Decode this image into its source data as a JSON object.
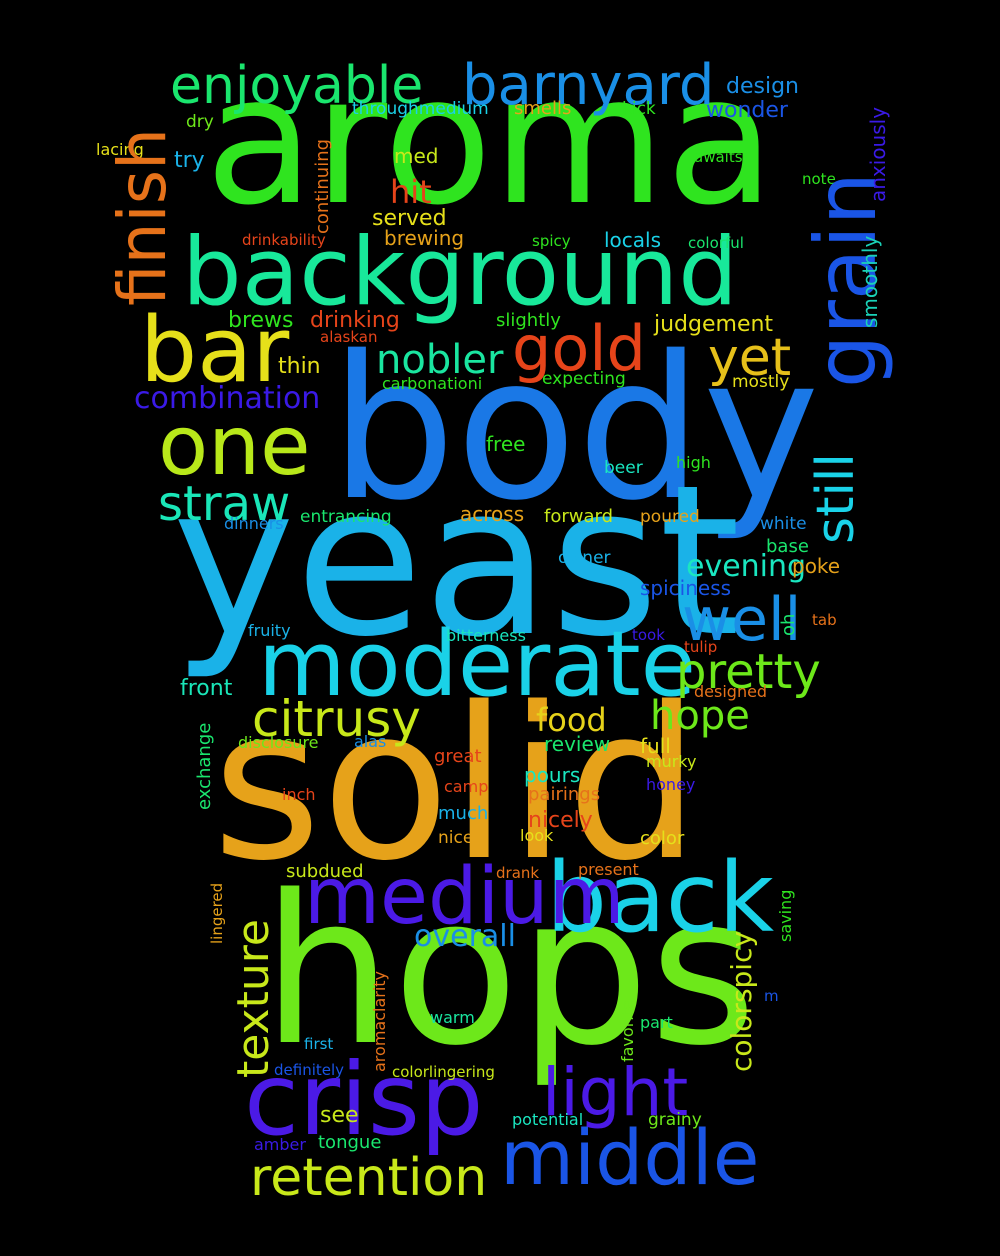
{
  "words": [
    {
      "text": "aroma",
      "color": "#2fe41f"
    },
    {
      "text": "body",
      "color": "#1a78e6"
    },
    {
      "text": "yeast",
      "color": "#1ab2e8"
    },
    {
      "text": "solid",
      "color": "#e6a21a"
    },
    {
      "text": "hops",
      "color": "#6de81a"
    },
    {
      "text": "background",
      "color": "#18e89a"
    },
    {
      "text": "moderate",
      "color": "#1ad2e8"
    },
    {
      "text": "back",
      "color": "#1ad2e8"
    },
    {
      "text": "crisp",
      "color": "#4b1ae6"
    },
    {
      "text": "middle",
      "color": "#1a55e6"
    },
    {
      "text": "medium",
      "color": "#1a55e6"
    },
    {
      "text": "grain",
      "color": "#4b1ae6"
    },
    {
      "text": "bar",
      "color": "#e6e01a"
    },
    {
      "text": "one",
      "color": "#b8e81a"
    },
    {
      "text": "barnyard",
      "color": "#1a8fe6"
    },
    {
      "text": "enjoyable",
      "color": "#1ae66e"
    },
    {
      "text": "finish",
      "color": "#e6721a"
    },
    {
      "text": "still",
      "color": "#1ad2e8"
    },
    {
      "text": "well",
      "color": "#1a8fe6"
    },
    {
      "text": "gold",
      "color": "#e6441a"
    },
    {
      "text": "yet",
      "color": "#e6c01a"
    },
    {
      "text": "light",
      "color": "#4b1ae6"
    },
    {
      "text": "retention",
      "color": "#c8e81a"
    },
    {
      "text": "straw",
      "color": "#1ae6b8"
    },
    {
      "text": "citrusy",
      "color": "#c8e81a"
    },
    {
      "text": "pretty",
      "color": "#6de81a"
    },
    {
      "text": "texture",
      "color": "#c8e81a"
    },
    {
      "text": "nobler",
      "color": "#1ae6a0"
    },
    {
      "text": "hope",
      "color": "#6de81a"
    },
    {
      "text": "combination",
      "color": "#3a1ae6"
    },
    {
      "text": "colorspicy",
      "color": "#c8e81a"
    },
    {
      "text": "overall",
      "color": "#1a8fe6"
    },
    {
      "text": "evening",
      "color": "#1ae6c0"
    },
    {
      "text": "food",
      "color": "#e6d21a"
    },
    {
      "text": "hit",
      "color": "#e6441a"
    },
    {
      "text": "judgement",
      "color": "#e6e01a"
    },
    {
      "text": "design",
      "color": "#1a8fe6"
    },
    {
      "text": "wonder",
      "color": "#1a55e6"
    },
    {
      "text": "smoothly",
      "color": "#1ad2b8"
    },
    {
      "text": "anxiously",
      "color": "#3a1ae6"
    },
    {
      "text": "throughmedium",
      "color": "#1ad2e8"
    },
    {
      "text": "smells",
      "color": "#e6a21a"
    },
    {
      "text": "kick",
      "color": "#2fe41f"
    },
    {
      "text": "dry",
      "color": "#6de81a"
    },
    {
      "text": "lacing",
      "color": "#e6e01a"
    },
    {
      "text": "try",
      "color": "#1ab2e8"
    },
    {
      "text": "med",
      "color": "#c8e81a"
    },
    {
      "text": "continuing",
      "color": "#e6721a"
    },
    {
      "text": "awaits",
      "color": "#2fe41f"
    },
    {
      "text": "note",
      "color": "#2fe41f"
    },
    {
      "text": "served",
      "color": "#e6e01a"
    },
    {
      "text": "brewing",
      "color": "#e6a21a"
    },
    {
      "text": "drinkability",
      "color": "#e6441a"
    },
    {
      "text": "spicy",
      "color": "#2fe41f"
    },
    {
      "text": "locals",
      "color": "#1ad2e8"
    },
    {
      "text": "colorful",
      "color": "#1ae66e"
    },
    {
      "text": "brews",
      "color": "#2fe41f"
    },
    {
      "text": "drinking",
      "color": "#e6441a"
    },
    {
      "text": "slightly",
      "color": "#2fe41f"
    },
    {
      "text": "alaskan",
      "color": "#e6441a"
    },
    {
      "text": "thin",
      "color": "#e6e01a"
    },
    {
      "text": "carbonationi",
      "color": "#2fe41f"
    },
    {
      "text": "expecting",
      "color": "#2fe41f"
    },
    {
      "text": "mostly",
      "color": "#e6e01a"
    },
    {
      "text": "free",
      "color": "#2fe41f"
    },
    {
      "text": "beer",
      "color": "#1ae6c0"
    },
    {
      "text": "high",
      "color": "#2fe41f"
    },
    {
      "text": "dinners",
      "color": "#1a8fe6"
    },
    {
      "text": "entrancing",
      "color": "#1ae66e"
    },
    {
      "text": "across",
      "color": "#e6a21a"
    },
    {
      "text": "forward",
      "color": "#c8e81a"
    },
    {
      "text": "poured",
      "color": "#e6a21a"
    },
    {
      "text": "white",
      "color": "#1a8fe6"
    },
    {
      "text": "base",
      "color": "#1ae66e"
    },
    {
      "text": "owner",
      "color": "#1ab2e8"
    },
    {
      "text": "poke",
      "color": "#e6a21a"
    },
    {
      "text": "spiciness",
      "color": "#1a55e6"
    },
    {
      "text": "oh",
      "color": "#1ae66e"
    },
    {
      "text": "tab",
      "color": "#e6721a"
    },
    {
      "text": "fruity",
      "color": "#1ab2e8"
    },
    {
      "text": "bitterness",
      "color": "#1ae6c0"
    },
    {
      "text": "took",
      "color": "#3a1ae6"
    },
    {
      "text": "tulip",
      "color": "#e6441a"
    },
    {
      "text": "front",
      "color": "#1ae6b8"
    },
    {
      "text": "designed",
      "color": "#e6721a"
    },
    {
      "text": "exchange",
      "color": "#1ae66e"
    },
    {
      "text": "disclosure",
      "color": "#6de81a"
    },
    {
      "text": "alas",
      "color": "#1a8fe6"
    },
    {
      "text": "review",
      "color": "#1ae66e"
    },
    {
      "text": "full",
      "color": "#e6e01a"
    },
    {
      "text": "great",
      "color": "#e6441a"
    },
    {
      "text": "murky",
      "color": "#c8e81a"
    },
    {
      "text": "camp",
      "color": "#e6441a"
    },
    {
      "text": "pours",
      "color": "#1ae6c0"
    },
    {
      "text": "honey",
      "color": "#3a1ae6"
    },
    {
      "text": "inch",
      "color": "#e6441a"
    },
    {
      "text": "pairings",
      "color": "#e6721a"
    },
    {
      "text": "much",
      "color": "#1ab2e8"
    },
    {
      "text": "nicely",
      "color": "#e6441a"
    },
    {
      "text": "nice",
      "color": "#e6a21a"
    },
    {
      "text": "look",
      "color": "#e6e01a"
    },
    {
      "text": "color",
      "color": "#e6e01a"
    },
    {
      "text": "lingered",
      "color": "#e6a21a"
    },
    {
      "text": "subdued",
      "color": "#c8e81a"
    },
    {
      "text": "drank",
      "color": "#e6721a"
    },
    {
      "text": "present",
      "color": "#e6721a"
    },
    {
      "text": "saving",
      "color": "#2fe41f"
    },
    {
      "text": "aromaclarity",
      "color": "#e6721a"
    },
    {
      "text": "m",
      "color": "#1a55e6"
    },
    {
      "text": "favorite",
      "color": "#6de81a"
    },
    {
      "text": "warm",
      "color": "#1ae6a0"
    },
    {
      "text": "part",
      "color": "#1ae66e"
    },
    {
      "text": "first",
      "color": "#1ab2e8"
    },
    {
      "text": "definitely",
      "color": "#1a55e6"
    },
    {
      "text": "colorlingering",
      "color": "#c8e81a"
    },
    {
      "text": "see",
      "color": "#c8e81a"
    },
    {
      "text": "potential",
      "color": "#1ae6c0"
    },
    {
      "text": "grainy",
      "color": "#6de81a"
    },
    {
      "text": "amber",
      "color": "#3a1ae6"
    },
    {
      "text": "tongue",
      "color": "#1ae66e"
    }
  ]
}
